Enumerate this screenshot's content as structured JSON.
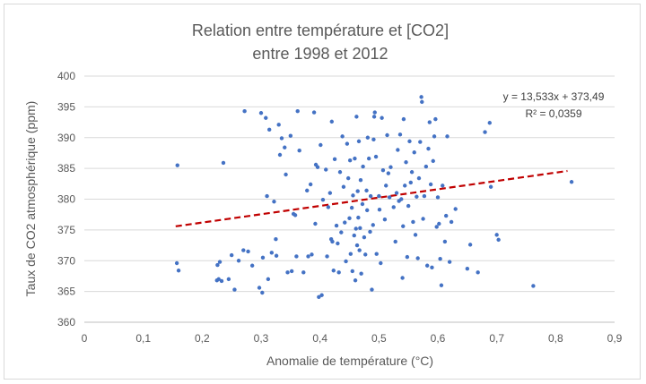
{
  "chart_data": {
    "type": "scatter",
    "title": [
      "Relation entre température et [CO2]",
      "entre 1998 et 2012"
    ],
    "xlabel": "Anomalie de température (°C)",
    "ylabel": "Taux de CO2 atmosphérique (ppm)",
    "xlim": [
      0,
      0.9
    ],
    "ylim": [
      360,
      400
    ],
    "x_ticks": [
      "0",
      "0,1",
      "0,2",
      "0,3",
      "0,4",
      "0,5",
      "0,6",
      "0,7",
      "0,8",
      "0,9"
    ],
    "y_ticks": [
      "360",
      "365",
      "370",
      "375",
      "380",
      "385",
      "390",
      "395",
      "400"
    ],
    "grid": "horizontal",
    "point_color": "#4472c4",
    "trendline": {
      "slope": 13.533,
      "intercept": 373.49,
      "x_range": [
        0.155,
        0.82
      ],
      "color": "#c00000",
      "style": "dashed",
      "equation": "y = 13,533x + 373,49",
      "r_squared": "R² = 0,0359"
    },
    "points": [
      [
        0.157,
        369.6
      ],
      [
        0.158,
        385.5
      ],
      [
        0.16,
        368.4
      ],
      [
        0.225,
        366.8
      ],
      [
        0.226,
        369.3
      ],
      [
        0.228,
        367.0
      ],
      [
        0.23,
        369.8
      ],
      [
        0.233,
        366.7
      ],
      [
        0.236,
        385.9
      ],
      [
        0.245,
        367.0
      ],
      [
        0.25,
        370.9
      ],
      [
        0.255,
        365.3
      ],
      [
        0.262,
        370.0
      ],
      [
        0.27,
        371.7
      ],
      [
        0.272,
        394.3
      ],
      [
        0.278,
        371.5
      ],
      [
        0.285,
        369.2
      ],
      [
        0.297,
        365.6
      ],
      [
        0.3,
        394.0
      ],
      [
        0.302,
        364.8
      ],
      [
        0.303,
        370.5
      ],
      [
        0.308,
        393.2
      ],
      [
        0.31,
        380.5
      ],
      [
        0.312,
        367.0
      ],
      [
        0.314,
        391.3
      ],
      [
        0.318,
        371.3
      ],
      [
        0.322,
        379.6
      ],
      [
        0.325,
        373.5
      ],
      [
        0.326,
        370.8
      ],
      [
        0.33,
        392.1
      ],
      [
        0.332,
        387.2
      ],
      [
        0.335,
        389.9
      ],
      [
        0.34,
        388.4
      ],
      [
        0.342,
        384.0
      ],
      [
        0.345,
        368.1
      ],
      [
        0.35,
        390.3
      ],
      [
        0.352,
        368.3
      ],
      [
        0.355,
        377.6
      ],
      [
        0.358,
        377.4
      ],
      [
        0.36,
        370.7
      ],
      [
        0.362,
        394.3
      ],
      [
        0.365,
        387.9
      ],
      [
        0.372,
        368.1
      ],
      [
        0.378,
        381.4
      ],
      [
        0.38,
        370.7
      ],
      [
        0.384,
        382.4
      ],
      [
        0.386,
        371.0
      ],
      [
        0.39,
        394.1
      ],
      [
        0.392,
        376.0
      ],
      [
        0.393,
        385.6
      ],
      [
        0.396,
        385.2
      ],
      [
        0.398,
        364.1
      ],
      [
        0.401,
        388.8
      ],
      [
        0.403,
        364.4
      ],
      [
        0.405,
        379.9
      ],
      [
        0.41,
        384.8
      ],
      [
        0.412,
        370.7
      ],
      [
        0.414,
        378.7
      ],
      [
        0.417,
        381.0
      ],
      [
        0.419,
        373.5
      ],
      [
        0.42,
        392.6
      ],
      [
        0.421,
        373.1
      ],
      [
        0.423,
        368.4
      ],
      [
        0.425,
        386.5
      ],
      [
        0.428,
        375.7
      ],
      [
        0.43,
        372.8
      ],
      [
        0.432,
        368.1
      ],
      [
        0.434,
        384.4
      ],
      [
        0.436,
        374.6
      ],
      [
        0.438,
        390.2
      ],
      [
        0.44,
        382.0
      ],
      [
        0.442,
        376.2
      ],
      [
        0.444,
        369.9
      ],
      [
        0.446,
        389.0
      ],
      [
        0.448,
        383.4
      ],
      [
        0.45,
        376.9
      ],
      [
        0.451,
        386.3
      ],
      [
        0.452,
        371.1
      ],
      [
        0.454,
        378.6
      ],
      [
        0.455,
        368.3
      ],
      [
        0.456,
        380.6
      ],
      [
        0.458,
        374.1
      ],
      [
        0.459,
        386.6
      ],
      [
        0.46,
        366.8
      ],
      [
        0.461,
        375.2
      ],
      [
        0.462,
        393.4
      ],
      [
        0.463,
        372.5
      ],
      [
        0.464,
        381.3
      ],
      [
        0.465,
        377.0
      ],
      [
        0.466,
        389.4
      ],
      [
        0.467,
        371.7
      ],
      [
        0.468,
        375.3
      ],
      [
        0.469,
        383.1
      ],
      [
        0.47,
        367.9
      ],
      [
        0.472,
        379.2
      ],
      [
        0.473,
        385.3
      ],
      [
        0.475,
        373.8
      ],
      [
        0.477,
        371.0
      ],
      [
        0.479,
        381.4
      ],
      [
        0.48,
        378.2
      ],
      [
        0.481,
        390.0
      ],
      [
        0.483,
        386.6
      ],
      [
        0.485,
        374.7
      ],
      [
        0.486,
        380.5
      ],
      [
        0.488,
        365.3
      ],
      [
        0.49,
        375.8
      ],
      [
        0.491,
        389.7
      ],
      [
        0.492,
        393.4
      ],
      [
        0.493,
        394.1
      ],
      [
        0.495,
        386.9
      ],
      [
        0.496,
        371.1
      ],
      [
        0.5,
        380.5
      ],
      [
        0.501,
        378.3
      ],
      [
        0.503,
        369.6
      ],
      [
        0.505,
        393.2
      ],
      [
        0.507,
        384.7
      ],
      [
        0.51,
        376.7
      ],
      [
        0.512,
        382.2
      ],
      [
        0.514,
        390.4
      ],
      [
        0.516,
        384.2
      ],
      [
        0.518,
        380.3
      ],
      [
        0.52,
        385.2
      ],
      [
        0.525,
        378.7
      ],
      [
        0.528,
        373.1
      ],
      [
        0.53,
        381.0
      ],
      [
        0.532,
        388.0
      ],
      [
        0.534,
        379.7
      ],
      [
        0.536,
        390.5
      ],
      [
        0.538,
        380.0
      ],
      [
        0.54,
        367.2
      ],
      [
        0.541,
        375.6
      ],
      [
        0.542,
        393.0
      ],
      [
        0.544,
        382.2
      ],
      [
        0.546,
        386.0
      ],
      [
        0.548,
        370.6
      ],
      [
        0.55,
        378.9
      ],
      [
        0.552,
        389.4
      ],
      [
        0.554,
        382.7
      ],
      [
        0.556,
        384.4
      ],
      [
        0.558,
        376.3
      ],
      [
        0.56,
        387.6
      ],
      [
        0.562,
        374.2
      ],
      [
        0.564,
        380.4
      ],
      [
        0.566,
        370.4
      ],
      [
        0.568,
        383.4
      ],
      [
        0.57,
        389.3
      ],
      [
        0.572,
        396.6
      ],
      [
        0.573,
        395.8
      ],
      [
        0.575,
        376.8
      ],
      [
        0.577,
        380.5
      ],
      [
        0.58,
        385.3
      ],
      [
        0.582,
        369.2
      ],
      [
        0.584,
        388.2
      ],
      [
        0.586,
        392.5
      ],
      [
        0.588,
        382.4
      ],
      [
        0.59,
        368.9
      ],
      [
        0.592,
        386.2
      ],
      [
        0.594,
        390.2
      ],
      [
        0.596,
        393.0
      ],
      [
        0.598,
        375.5
      ],
      [
        0.6,
        380.3
      ],
      [
        0.602,
        376.0
      ],
      [
        0.604,
        370.3
      ],
      [
        0.606,
        366.0
      ],
      [
        0.608,
        382.2
      ],
      [
        0.612,
        373.1
      ],
      [
        0.614,
        377.3
      ],
      [
        0.616,
        390.2
      ],
      [
        0.62,
        369.8
      ],
      [
        0.623,
        376.3
      ],
      [
        0.63,
        378.4
      ],
      [
        0.65,
        368.7
      ],
      [
        0.655,
        372.6
      ],
      [
        0.668,
        368.1
      ],
      [
        0.68,
        390.9
      ],
      [
        0.688,
        392.4
      ],
      [
        0.69,
        382.0
      ],
      [
        0.7,
        374.2
      ],
      [
        0.703,
        373.4
      ],
      [
        0.762,
        365.9
      ],
      [
        0.827,
        382.8
      ]
    ]
  }
}
